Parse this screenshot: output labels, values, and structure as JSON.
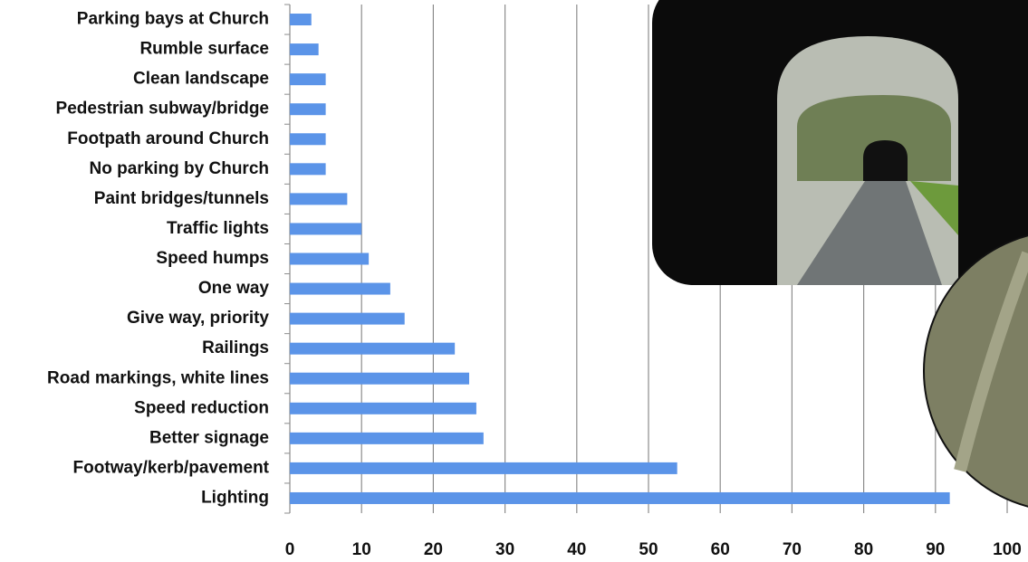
{
  "chart_data": {
    "type": "bar",
    "orientation": "horizontal",
    "categories": [
      "Parking bays at Church",
      "Rumble surface",
      "Clean landscape",
      "Pedestrian subway/bridge",
      "Footpath around Church",
      "No parking by Church",
      "Paint bridges/tunnels",
      "Traffic lights",
      "Speed humps",
      "One way",
      "Give way, priority",
      "Railings",
      "Road markings, white lines",
      "Speed reduction",
      "Better signage",
      "Footway/kerb/pavement",
      "Lighting"
    ],
    "values": [
      3,
      4,
      5,
      5,
      5,
      5,
      8,
      10,
      11,
      14,
      16,
      23,
      25,
      26,
      27,
      54,
      92
    ],
    "color": "#5b94e8",
    "xlim": [
      0,
      100
    ],
    "xticks": [
      0,
      10,
      20,
      30,
      40,
      50,
      60,
      70,
      80,
      90,
      100
    ],
    "grid": true
  }
}
